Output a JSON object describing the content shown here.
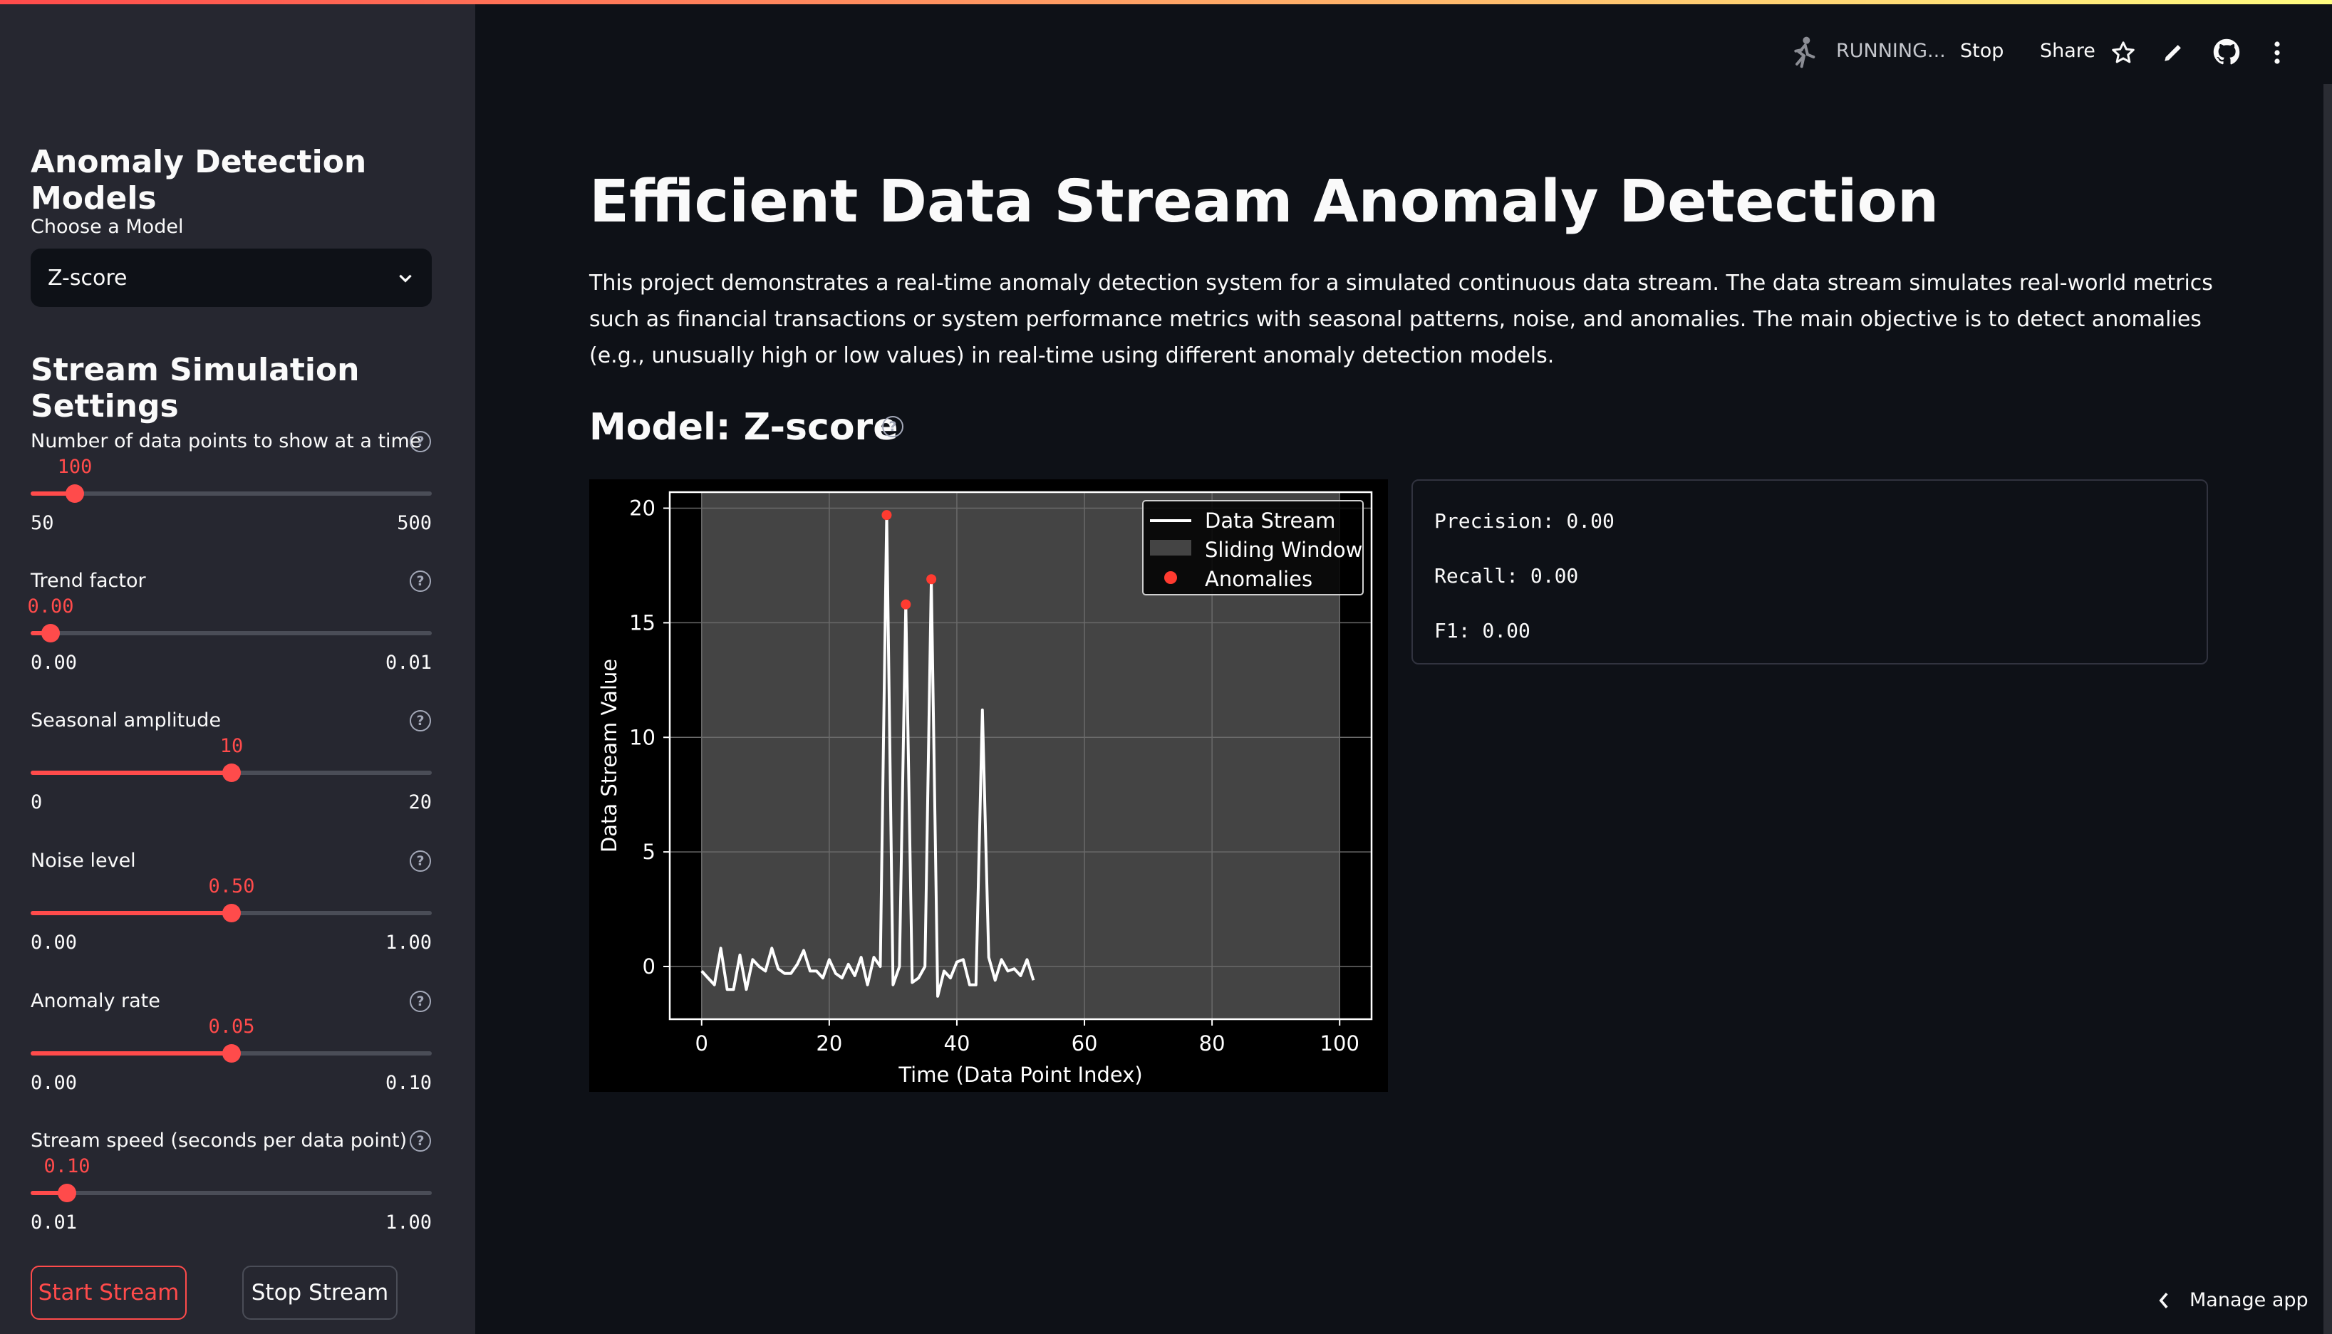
{
  "header": {
    "status": "RUNNING...",
    "stop_label": "Stop",
    "share_label": "Share"
  },
  "sidebar": {
    "models_heading": "Anomaly Detection Models",
    "choose_label": "Choose a Model",
    "selected_model": "Z-score",
    "settings_heading": "Stream Simulation Settings",
    "sliders": [
      {
        "label": "Number of data points to show at a time",
        "value": "100",
        "min": "50",
        "max": "500",
        "fraction": 0.111
      },
      {
        "label": "Trend factor",
        "value": "0.00",
        "min": "0.00",
        "max": "0.01",
        "fraction": 0.05
      },
      {
        "label": "Seasonal amplitude",
        "value": "10",
        "min": "0",
        "max": "20",
        "fraction": 0.5
      },
      {
        "label": "Noise level",
        "value": "0.50",
        "min": "0.00",
        "max": "1.00",
        "fraction": 0.5
      },
      {
        "label": "Anomaly rate",
        "value": "0.05",
        "min": "0.00",
        "max": "0.10",
        "fraction": 0.5
      },
      {
        "label": "Stream speed (seconds per data point)",
        "value": "0.10",
        "min": "0.01",
        "max": "1.00",
        "fraction": 0.091
      }
    ],
    "start_label": "Start Stream",
    "stop_label": "Stop Stream"
  },
  "main": {
    "title": "Efficient Data Stream Anomaly Detection",
    "description": "This project demonstrates a real-time anomaly detection system for a simulated continuous data stream. The data stream simulates real-world metrics such as financial transactions or system performance metrics with seasonal patterns, noise, and anomalies. The main objective is to detect anomalies (e.g., unusually high or low values) in real-time using different anomaly detection models.",
    "model_heading": "Model: Z-score",
    "metrics": {
      "precision": "Precision: 0.00",
      "recall": "Recall: 0.00",
      "f1": "F1: 0.00"
    },
    "manage_app": "Manage app"
  },
  "colors": {
    "accent": "#ff4b4b",
    "sidebar_bg": "#262730",
    "main_bg": "#0e1117"
  },
  "chart_data": {
    "type": "line",
    "xlabel": "Time (Data Point Index)",
    "ylabel": "Data Stream Value",
    "xlim": [
      -5,
      105
    ],
    "ylim": [
      -2.3,
      20.7
    ],
    "xticks": [
      0,
      20,
      40,
      60,
      80,
      100
    ],
    "yticks": [
      0,
      5,
      10,
      15,
      20
    ],
    "grid": true,
    "legend_position": "top-right",
    "legend": [
      "Data Stream",
      "Sliding Window",
      "Anomalies"
    ],
    "sliding_window": [
      0,
      100
    ],
    "series": [
      {
        "name": "Data Stream",
        "x": [
          0,
          1,
          2,
          3,
          4,
          5,
          6,
          7,
          8,
          9,
          10,
          11,
          12,
          13,
          14,
          15,
          16,
          17,
          18,
          19,
          20,
          21,
          22,
          23,
          24,
          25,
          26,
          27,
          28,
          29,
          30,
          31,
          32,
          33,
          34,
          35,
          36,
          37,
          38,
          39,
          40,
          41,
          42,
          43,
          44,
          45,
          46,
          47,
          48,
          49,
          50,
          51,
          52
        ],
        "values": [
          -0.2,
          -0.5,
          -0.8,
          0.8,
          -1.0,
          -1.0,
          0.5,
          -1.0,
          0.3,
          0.0,
          -0.2,
          0.8,
          -0.1,
          -0.3,
          -0.3,
          0.1,
          0.7,
          -0.2,
          -0.2,
          -0.5,
          0.3,
          -0.3,
          -0.5,
          0.1,
          -0.4,
          0.4,
          -0.8,
          0.4,
          0.0,
          19.7,
          -0.8,
          0.0,
          15.8,
          -0.7,
          -0.5,
          0.0,
          16.9,
          -1.3,
          -0.2,
          -0.5,
          0.2,
          0.3,
          -0.8,
          -0.8,
          11.2,
          0.4,
          -0.6,
          0.3,
          -0.2,
          -0.1,
          -0.4,
          0.3,
          -0.6
        ]
      }
    ],
    "anomalies": {
      "x": [
        29,
        32,
        36
      ],
      "y": [
        19.7,
        15.8,
        16.9
      ]
    }
  }
}
